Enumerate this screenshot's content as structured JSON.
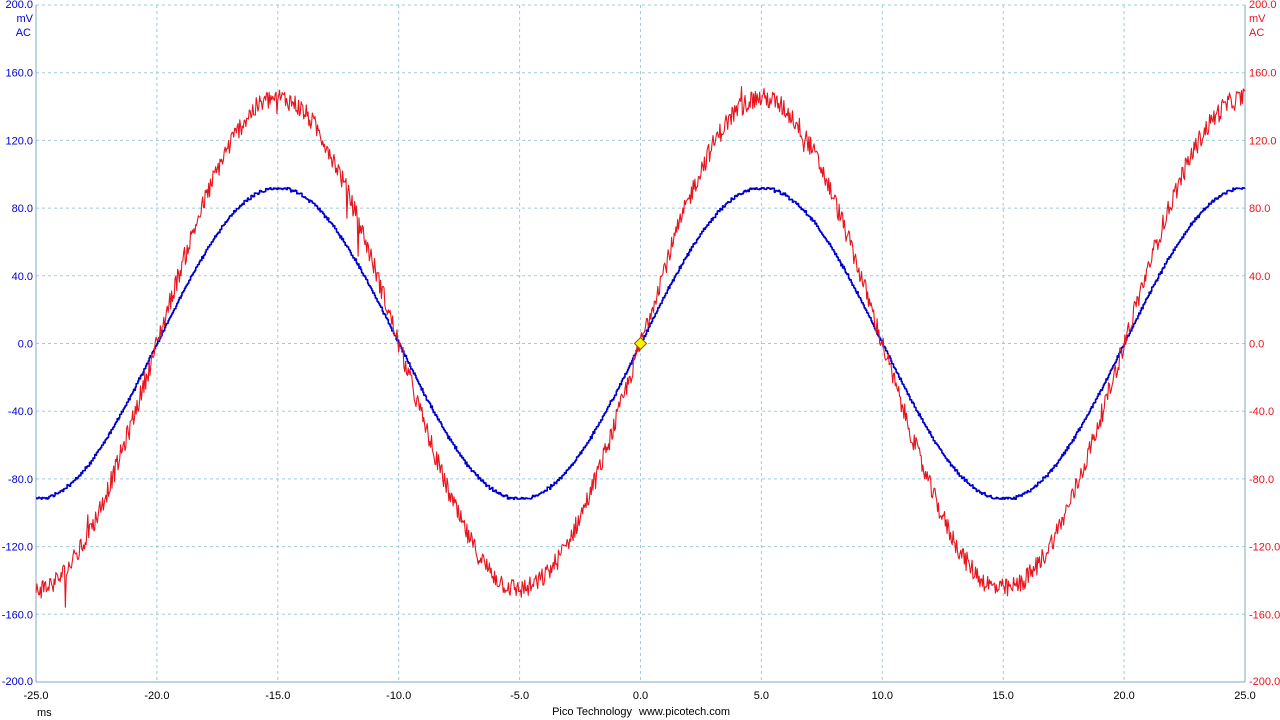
{
  "chart_data": {
    "type": "line",
    "x": {
      "unit_label": "ms",
      "range": [
        -25,
        25
      ],
      "ticks": [
        "-25.0",
        "-20.0",
        "-15.0",
        "-10.0",
        "-5.0",
        "0.0",
        "5.0",
        "10.0",
        "15.0",
        "20.0",
        "25.0"
      ],
      "tick_values": [
        -25,
        -20,
        -15,
        -10,
        -5,
        0,
        5,
        10,
        15,
        20,
        25
      ]
    },
    "y_left": {
      "unit_label": "mV",
      "coupling_label": "AC",
      "range": [
        -200,
        200
      ],
      "ticks": [
        "200.0",
        "160.0",
        "120.0",
        "80.0",
        "40.0",
        "0.0",
        "-40.0",
        "-80.0",
        "-120.0",
        "-160.0",
        "-200.0"
      ],
      "tick_values": [
        200,
        160,
        120,
        80,
        40,
        0,
        -40,
        -80,
        -120,
        -160,
        -200
      ],
      "color": "#0000CD"
    },
    "y_right": {
      "unit_label": "mV",
      "coupling_label": "AC",
      "range": [
        -200,
        200
      ],
      "ticks": [
        "200.0",
        "160.0",
        "120.0",
        "80.0",
        "40.0",
        "0.0",
        "-40.0",
        "-80.0",
        "-120.0",
        "-160.0",
        "-200.0"
      ],
      "tick_values": [
        200,
        160,
        120,
        80,
        40,
        0,
        -40,
        -80,
        -120,
        -160,
        -200
      ],
      "color": "#E8141E"
    },
    "grid": true,
    "series": [
      {
        "axis": "left",
        "color": "#0000CD",
        "waveform": "sine",
        "amplitude_mV": 92,
        "period_ms": 20,
        "peak_times_ms": [
          -15,
          5,
          25
        ],
        "trough_times_ms": [
          -25,
          -5,
          15
        ],
        "zero_crossings_ms": [
          -20,
          -10,
          0,
          10,
          20
        ],
        "noise": "stepped / low"
      },
      {
        "axis": "right",
        "color": "#E8141E",
        "waveform": "sine",
        "amplitude_mV": 145,
        "period_ms": 20,
        "peak_times_ms": [
          -15,
          5,
          25
        ],
        "trough_times_ms": [
          -25,
          -5,
          15
        ],
        "zero_crossings_ms": [
          -20,
          -10,
          0,
          10,
          20
        ],
        "noise": "high"
      }
    ],
    "trigger_marker": {
      "x_ms": 0,
      "y_mV": 0,
      "color": "#FFF200"
    }
  },
  "footer": {
    "brand": "Pico Technology",
    "url": "www.picotech.com"
  }
}
